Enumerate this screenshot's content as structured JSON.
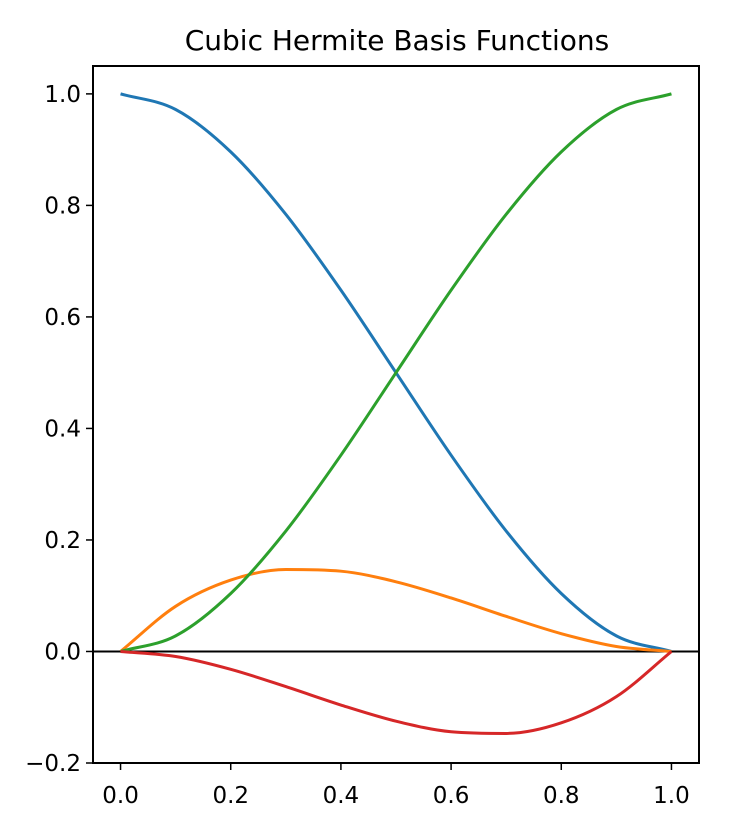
{
  "chart_data": {
    "type": "line",
    "title": "Cubic Hermite Basis Functions",
    "xlabel": "",
    "ylabel": "",
    "xlim": [
      -0.05,
      1.05
    ],
    "ylim": [
      -0.2,
      1.05
    ],
    "xticks": [
      0.0,
      0.2,
      0.4,
      0.6,
      0.8,
      1.0
    ],
    "xtick_labels": [
      "0.0",
      "0.2",
      "0.4",
      "0.6",
      "0.8",
      "1.0"
    ],
    "yticks": [
      -0.2,
      0.0,
      0.2,
      0.4,
      0.6,
      0.8,
      1.0
    ],
    "ytick_labels": [
      "−0.2",
      "0.0",
      "0.2",
      "0.4",
      "0.6",
      "0.8",
      "1.0"
    ],
    "grid": false,
    "hline": 0.0,
    "x": [
      0.0,
      0.1,
      0.2,
      0.3,
      0.4,
      0.5,
      0.6,
      0.7,
      0.8,
      0.9,
      1.0
    ],
    "series": [
      {
        "color": "#1f77b4",
        "values": [
          1.0,
          0.972,
          0.896,
          0.784,
          0.648,
          0.5,
          0.352,
          0.216,
          0.104,
          0.028,
          0.0
        ]
      },
      {
        "color": "#ff7f0e",
        "values": [
          0.0,
          0.081,
          0.128,
          0.147,
          0.144,
          0.125,
          0.096,
          0.063,
          0.032,
          0.009,
          0.0
        ]
      },
      {
        "color": "#2ca02c",
        "values": [
          0.0,
          0.028,
          0.104,
          0.216,
          0.352,
          0.5,
          0.648,
          0.784,
          0.896,
          0.972,
          1.0
        ]
      },
      {
        "color": "#d62728",
        "values": [
          0.0,
          -0.009,
          -0.032,
          -0.063,
          -0.096,
          -0.125,
          -0.144,
          -0.147,
          -0.128,
          -0.081,
          0.0
        ]
      }
    ]
  }
}
